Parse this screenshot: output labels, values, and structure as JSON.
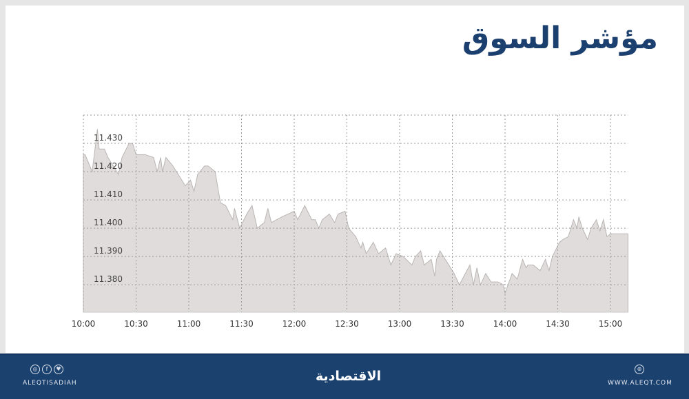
{
  "title": "مؤشر السوق",
  "chart_data": {
    "type": "area",
    "title": "مؤشر السوق",
    "xlabel": "",
    "ylabel": "",
    "x_ticks": [
      "10:00",
      "10:30",
      "11:00",
      "11:30",
      "12:00",
      "12:30",
      "13:00",
      "13:30",
      "14:00",
      "14:30",
      "15:00"
    ],
    "y_ticks": [
      "11.380",
      "11.390",
      "11.400",
      "11.410",
      "11.420",
      "11.430"
    ],
    "ylim": [
      11.3703,
      11.44
    ],
    "xlim": [
      "10:00",
      "15:10"
    ],
    "grid": true,
    "fill_color": "#dfdcdb",
    "line_color": "#b9b5b4",
    "x": [
      "10:00",
      "10:01",
      "10:05",
      "10:08",
      "10:09",
      "10:12",
      "10:14",
      "10:20",
      "10:22",
      "10:26",
      "10:28",
      "10:30",
      "10:35",
      "10:40",
      "10:42",
      "10:44",
      "10:45",
      "10:47",
      "10:51",
      "10:53",
      "10:56",
      "10:58",
      "11:01",
      "11:03",
      "11:05",
      "11:09",
      "11:11",
      "11:15",
      "11:18",
      "11:21",
      "11:25",
      "11:26",
      "11:29",
      "11:33",
      "11:36",
      "11:39",
      "11:43",
      "11:45",
      "11:47",
      "11:53",
      "12:00",
      "12:02",
      "12:06",
      "12:10",
      "12:12",
      "12:14",
      "12:16",
      "12:20",
      "12:23",
      "12:25",
      "12:29",
      "12:31",
      "12:35",
      "12:38",
      "12:39",
      "12:41",
      "12:45",
      "12:48",
      "12:52",
      "12:55",
      "12:58",
      "13:02",
      "13:07",
      "13:09",
      "13:12",
      "13:14",
      "13:18",
      "13:20",
      "13:21",
      "13:23",
      "13:28",
      "13:31",
      "13:34",
      "13:40",
      "13:42",
      "13:44",
      "13:46",
      "13:49",
      "13:52",
      "13:56",
      "13:59",
      "14:00",
      "14:04",
      "14:07",
      "14:10",
      "14:12",
      "14:13",
      "14:16",
      "14:20",
      "14:23",
      "14:25",
      "14:27",
      "14:31",
      "14:33",
      "14:36",
      "14:39",
      "14:41",
      "14:42",
      "14:44",
      "14:47",
      "14:49",
      "14:52",
      "14:54",
      "14:56",
      "14:58",
      "15:00",
      "15:10"
    ],
    "values": [
      11.426,
      11.426,
      11.42,
      11.435,
      11.428,
      11.428,
      11.425,
      11.419,
      11.425,
      11.43,
      11.43,
      11.426,
      11.426,
      11.425,
      11.42,
      11.425,
      11.42,
      11.425,
      11.422,
      11.42,
      11.417,
      11.415,
      11.417,
      11.413,
      11.419,
      11.422,
      11.422,
      11.42,
      11.409,
      11.408,
      11.403,
      11.407,
      11.4,
      11.405,
      11.408,
      11.4,
      11.402,
      11.407,
      11.402,
      11.404,
      11.406,
      11.403,
      11.408,
      11.403,
      11.403,
      11.4,
      11.403,
      11.405,
      11.402,
      11.405,
      11.406,
      11.4,
      11.397,
      11.393,
      11.395,
      11.391,
      11.395,
      11.391,
      11.393,
      11.387,
      11.391,
      11.39,
      11.387,
      11.39,
      11.392,
      11.387,
      11.389,
      11.383,
      11.389,
      11.392,
      11.387,
      11.384,
      11.38,
      11.387,
      11.38,
      11.386,
      11.38,
      11.384,
      11.381,
      11.381,
      11.38,
      11.377,
      11.384,
      11.382,
      11.389,
      11.386,
      11.387,
      11.387,
      11.385,
      11.389,
      11.385,
      11.39,
      11.395,
      11.396,
      11.397,
      11.403,
      11.4,
      11.404,
      11.4,
      11.396,
      11.4,
      11.403,
      11.399,
      11.403,
      11.397,
      11.398,
      11.398
    ]
  },
  "footer": {
    "social_icons": [
      "instagram-icon",
      "facebook-icon",
      "twitter-icon"
    ],
    "handle": "ALEQTISADIAH",
    "logo": "الاقتصادية",
    "website": "WWW.ALEQT.COM",
    "background": "#1b416f"
  }
}
